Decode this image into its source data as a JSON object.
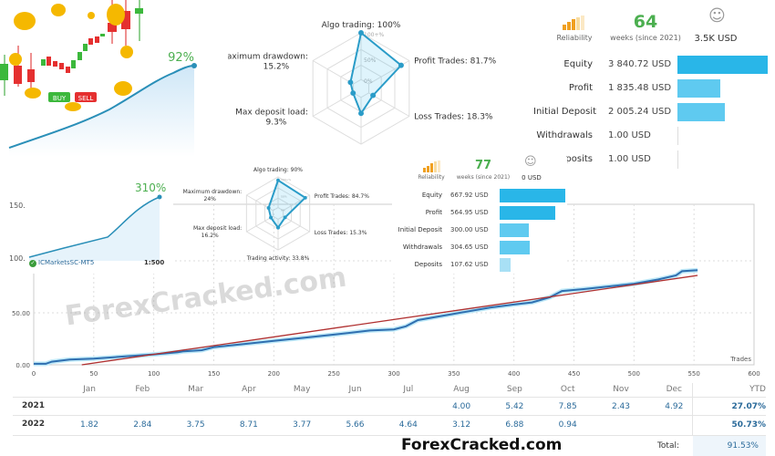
{
  "hero": {
    "gain_label": "92%",
    "buy_label": "BUY",
    "sell_label": "SELL"
  },
  "radar_top": {
    "axes": [
      {
        "label": "Algo trading: 100%",
        "value": 100
      },
      {
        "label": "Profit Trades: 81.7%",
        "value": 81.7
      },
      {
        "label": "Loss Trades: 18.3%",
        "value": 18.3
      },
      {
        "label": "",
        "value": 40
      },
      {
        "label": "Max deposit load:\n9.3%",
        "value": 9.3
      },
      {
        "label": "Maximum drawdown:\n15.2%",
        "value": 15.2
      }
    ],
    "ring_labels": [
      "100+%",
      "50%",
      "0%"
    ]
  },
  "radar_small": {
    "axes": [
      {
        "label": "Algo trading: 90%",
        "value": 90
      },
      {
        "label": "Profit Trades: 84.7%",
        "value": 84.7
      },
      {
        "label": "Loss Trades: 15.3%",
        "value": 15.3
      },
      {
        "label": "Trading activity: 33.8%",
        "value": 33.8
      },
      {
        "label": "Max deposit load:\n16.2%",
        "value": 16.2
      },
      {
        "label": "Maximum drawdown:\n24%",
        "value": 24
      }
    ],
    "ring_labels": [
      "100+%",
      "50%",
      "0%"
    ]
  },
  "stats_top": {
    "reliability_label": "Reliability",
    "weeks": "64",
    "weeks_label": "weeks (since 2021)",
    "subscribers_value": "3.5K USD",
    "rows": [
      {
        "label": "Equity",
        "value": "3 840.72 USD",
        "amount": 3840.72
      },
      {
        "label": "Profit",
        "value": "1 835.48 USD",
        "amount": 1835.48
      },
      {
        "label": "Initial Deposit",
        "value": "2 005.24 USD",
        "amount": 2005.24
      },
      {
        "label": "Withdrawals",
        "value": "1.00 USD",
        "amount": 1.0
      },
      {
        "label": "posits",
        "value": "1.00 USD",
        "amount": 1.0
      }
    ]
  },
  "stats_small": {
    "reliability_label": "Reliability",
    "weeks": "77",
    "weeks_label": "weeks (since 2021)",
    "subscribers_value": "0 USD",
    "rows": [
      {
        "label": "Equity",
        "value": "667.92 USD",
        "amount": 667.92
      },
      {
        "label": "Profit",
        "value": "564.95 USD",
        "amount": 564.95
      },
      {
        "label": "Initial Deposit",
        "value": "300.00 USD",
        "amount": 300.0
      },
      {
        "label": "Withdrawals",
        "value": "304.65 USD",
        "amount": 304.65
      },
      {
        "label": "Deposits",
        "value": "107.62 USD",
        "amount": 107.62
      }
    ]
  },
  "mini_chart": {
    "gain_label": "310%",
    "y_ticks": [
      "150.",
      "100."
    ],
    "broker": "ICMarketsSC-MT5",
    "leverage": "1:500"
  },
  "colors": {
    "accent": "#29b6e8",
    "bar_light": "#5fcaf0",
    "bar_lighter": "#a8e0f5",
    "green": "#4caf50",
    "balance_line": "#2f6fb0",
    "trend_line": "#b03030"
  },
  "chart_data": {
    "type": "line",
    "xlabel": "Trades",
    "ylabel": "",
    "xlim": [
      0,
      600
    ],
    "ylim": [
      0,
      100
    ],
    "x_ticks": [
      "0",
      "50",
      "100",
      "150",
      "200",
      "250",
      "300",
      "350",
      "400",
      "450",
      "500",
      "550",
      "600"
    ],
    "y_ticks": [
      "0.00",
      "50.00"
    ],
    "grid": true,
    "series": [
      {
        "points": [
          [
            0,
            1
          ],
          [
            10,
            1
          ],
          [
            15,
            3
          ],
          [
            30,
            5
          ],
          [
            50,
            6
          ],
          [
            75,
            8
          ],
          [
            100,
            10
          ],
          [
            120,
            12
          ],
          [
            125,
            13
          ],
          [
            140,
            14
          ],
          [
            150,
            17
          ],
          [
            175,
            20
          ],
          [
            200,
            23
          ],
          [
            225,
            26
          ],
          [
            250,
            29
          ],
          [
            280,
            33
          ],
          [
            300,
            34
          ],
          [
            310,
            37
          ],
          [
            320,
            43
          ],
          [
            350,
            49
          ],
          [
            380,
            55
          ],
          [
            400,
            58
          ],
          [
            415,
            60
          ],
          [
            430,
            65
          ],
          [
            440,
            71
          ],
          [
            460,
            73
          ],
          [
            500,
            78
          ],
          [
            520,
            82
          ],
          [
            535,
            86
          ],
          [
            540,
            90
          ],
          [
            553,
            91
          ]
        ]
      },
      {
        "points": [
          [
            40,
            0
          ],
          [
            553,
            86
          ]
        ]
      }
    ]
  },
  "monthly_table": {
    "months": [
      "Jan",
      "Feb",
      "Mar",
      "Apr",
      "May",
      "Jun",
      "Jul",
      "Aug",
      "Sep",
      "Oct",
      "Nov",
      "Dec"
    ],
    "ytd_label": "YTD",
    "rows": [
      {
        "year": "2021",
        "values": [
          "",
          "",
          "",
          "",
          "",
          "",
          "",
          "4.00",
          "5.42",
          "7.85",
          "2.43",
          "4.92"
        ],
        "ytd": "27.07%"
      },
      {
        "year": "2022",
        "values": [
          "1.82",
          "2.84",
          "3.75",
          "8.71",
          "3.77",
          "5.66",
          "4.64",
          "3.12",
          "6.88",
          "0.94",
          "",
          ""
        ],
        "ytd": "50.73%"
      }
    ],
    "total_label": "Total:",
    "total_value": "91.53%"
  },
  "watermark": "ForexCracked.com"
}
